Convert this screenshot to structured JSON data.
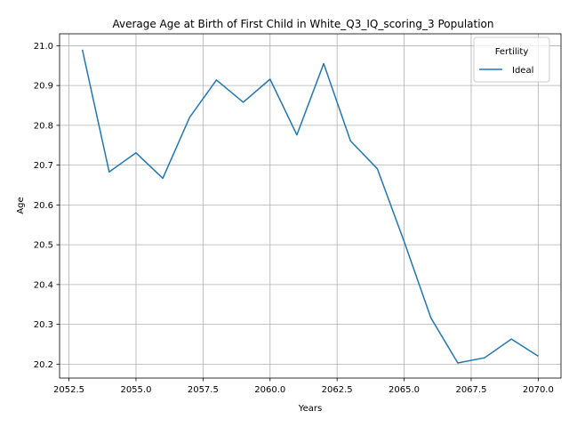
{
  "chart_data": {
    "type": "line",
    "title": "Average Age at Birth of First Child in White_Q3_IQ_scoring_3 Population",
    "xlabel": "Years",
    "ylabel": "Age",
    "xlim": [
      2052.15,
      2070.85
    ],
    "ylim": [
      20.165,
      21.03
    ],
    "x_ticks": [
      2052.5,
      2055.0,
      2057.5,
      2060.0,
      2062.5,
      2065.0,
      2067.5,
      2070.0
    ],
    "x_tick_labels": [
      "2052.5",
      "2055.0",
      "2057.5",
      "2060.0",
      "2062.5",
      "2065.0",
      "2067.5",
      "2070.0"
    ],
    "y_ticks": [
      20.2,
      20.3,
      20.4,
      20.5,
      20.6,
      20.7,
      20.8,
      20.9,
      21.0
    ],
    "y_tick_labels": [
      "20.2",
      "20.3",
      "20.4",
      "20.5",
      "20.6",
      "20.7",
      "20.8",
      "20.9",
      "21.0"
    ],
    "grid": true,
    "legend": {
      "title": "Fertility",
      "placement": "top-right"
    },
    "series": [
      {
        "name": "Ideal",
        "color": "#1f77b4",
        "x": [
          2053,
          2054,
          2055,
          2056,
          2057,
          2058,
          2059,
          2060,
          2061,
          2062,
          2063,
          2064,
          2065,
          2066,
          2067,
          2068,
          2069,
          2070
        ],
        "values": [
          20.99,
          20.683,
          20.731,
          20.667,
          20.82,
          20.914,
          20.858,
          20.916,
          20.776,
          20.955,
          20.761,
          20.691,
          20.508,
          20.316,
          20.203,
          20.216,
          20.263,
          20.22
        ]
      }
    ]
  }
}
